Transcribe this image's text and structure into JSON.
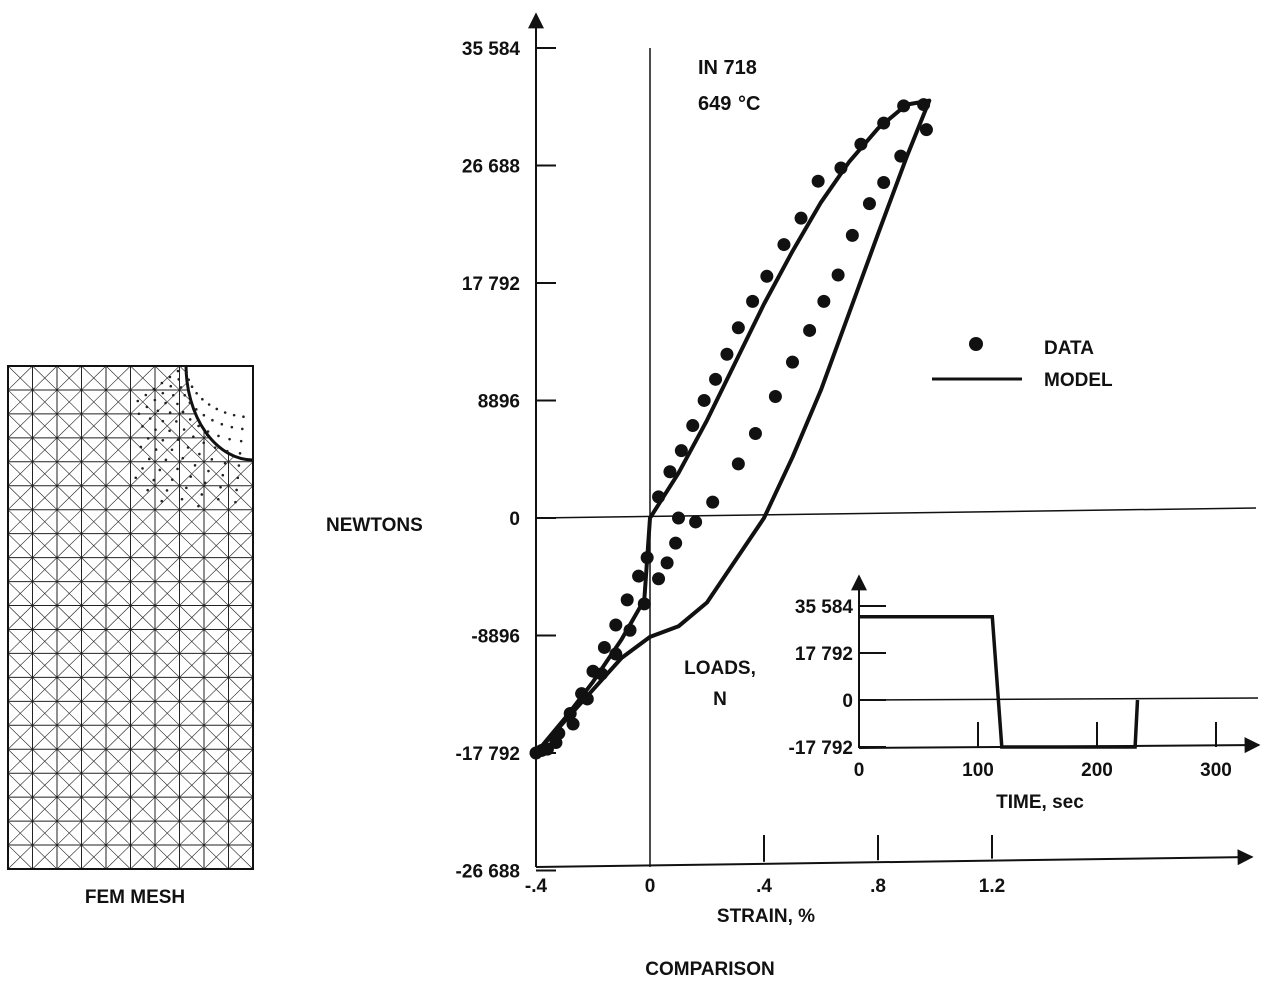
{
  "mesh": {
    "caption": "FEM MESH"
  },
  "main_chart": {
    "material": "IN 718",
    "temperature": "649",
    "temperature_unit": "°C",
    "ylabel": "NEWTONS",
    "xlabel": "STRAIN, %",
    "caption": "COMPARISON",
    "legend": {
      "data_label": "DATA",
      "model_label": "MODEL"
    }
  },
  "inset_chart": {
    "ylabel_line1": "LOADS,",
    "ylabel_line2": "N",
    "xlabel": "TIME, sec"
  },
  "chart_data": [
    {
      "type": "scatter",
      "title": "IN 718 649 °C",
      "xlabel": "STRAIN, %",
      "ylabel": "NEWTONS",
      "xlim": [
        -0.4,
        1.45
      ],
      "ylim": [
        -26688,
        35584
      ],
      "x_ticks": [
        -0.4,
        0,
        0.4,
        0.8,
        1.2
      ],
      "x_tick_labels": [
        "-.4",
        "0",
        ".4",
        ".8",
        "1.2"
      ],
      "y_ticks": [
        -26688,
        -17792,
        -8896,
        0,
        8896,
        17792,
        26688,
        35584
      ],
      "y_tick_labels": [
        "-26 688",
        "-17 792",
        "-8896",
        "0",
        "8896",
        "17 792",
        "26 688",
        "35 584"
      ],
      "grid": false,
      "legend_position": "right",
      "series": [
        {
          "name": "DATA",
          "style": "markers",
          "points": [
            [
              -0.4,
              -17792
            ],
            [
              -0.36,
              -17500
            ],
            [
              -0.32,
              -16300
            ],
            [
              -0.28,
              -14800
            ],
            [
              -0.24,
              -13300
            ],
            [
              -0.2,
              -11600
            ],
            [
              -0.16,
              -9800
            ],
            [
              -0.12,
              -8100
            ],
            [
              -0.08,
              -6200
            ],
            [
              -0.04,
              -4400
            ],
            [
              -0.01,
              -3000
            ],
            [
              0.03,
              1600
            ],
            [
              0.07,
              3500
            ],
            [
              0.11,
              5100
            ],
            [
              0.15,
              7000
            ],
            [
              0.19,
              8900
            ],
            [
              0.23,
              10500
            ],
            [
              0.27,
              12400
            ],
            [
              0.31,
              14400
            ],
            [
              0.36,
              16400
            ],
            [
              0.41,
              18300
            ],
            [
              0.47,
              20700
            ],
            [
              0.53,
              22700
            ],
            [
              0.59,
              25500
            ],
            [
              0.67,
              26500
            ],
            [
              0.74,
              28300
            ],
            [
              0.82,
              29900
            ],
            [
              0.89,
              31200
            ],
            [
              0.96,
              31300
            ],
            [
              0.97,
              29400
            ],
            [
              0.88,
              27400
            ],
            [
              0.82,
              25400
            ],
            [
              0.77,
              23800
            ],
            [
              0.71,
              21400
            ],
            [
              0.66,
              18400
            ],
            [
              0.61,
              16400
            ],
            [
              0.56,
              14200
            ],
            [
              0.5,
              11800
            ],
            [
              0.44,
              9200
            ],
            [
              0.37,
              6400
            ],
            [
              0.31,
              4100
            ],
            [
              0.22,
              1200
            ],
            [
              0.16,
              -300
            ],
            [
              0.1,
              0
            ],
            [
              0.09,
              -1900
            ],
            [
              0.06,
              -3400
            ],
            [
              0.03,
              -4600
            ],
            [
              -0.02,
              -6500
            ],
            [
              -0.07,
              -8500
            ],
            [
              -0.12,
              -10300
            ],
            [
              -0.17,
              -11800
            ],
            [
              -0.22,
              -13700
            ],
            [
              -0.27,
              -15600
            ],
            [
              -0.33,
              -17000
            ],
            [
              -0.38,
              -17600
            ]
          ]
        },
        {
          "name": "MODEL",
          "style": "line",
          "upper": [
            [
              -0.4,
              -17792
            ],
            [
              -0.3,
              -15200
            ],
            [
              -0.2,
              -12400
            ],
            [
              -0.1,
              -9200
            ],
            [
              -0.02,
              -6200
            ],
            [
              0.0,
              0
            ],
            [
              0.1,
              3400
            ],
            [
              0.2,
              7400
            ],
            [
              0.3,
              11800
            ],
            [
              0.4,
              16200
            ],
            [
              0.5,
              20200
            ],
            [
              0.6,
              23900
            ],
            [
              0.7,
              27000
            ],
            [
              0.8,
              29500
            ],
            [
              0.9,
              31300
            ],
            [
              0.98,
              31600
            ]
          ],
          "lower": [
            [
              0.98,
              31600
            ],
            [
              0.9,
              27300
            ],
            [
              0.8,
              21500
            ],
            [
              0.7,
              15600
            ],
            [
              0.6,
              9700
            ],
            [
              0.5,
              4600
            ],
            [
              0.4,
              0
            ],
            [
              0.3,
              -3200
            ],
            [
              0.2,
              -6400
            ],
            [
              0.1,
              -8200
            ],
            [
              0.0,
              -9000
            ],
            [
              -0.1,
              -10600
            ],
            [
              -0.2,
              -13000
            ],
            [
              -0.3,
              -15400
            ],
            [
              -0.4,
              -17792
            ]
          ]
        }
      ]
    },
    {
      "type": "line",
      "title": "",
      "xlabel": "TIME, sec",
      "ylabel": "LOADS, N",
      "xlim": [
        0,
        325
      ],
      "ylim": [
        -17792,
        44000
      ],
      "x_ticks": [
        0,
        100,
        200,
        300
      ],
      "x_tick_labels": [
        "0",
        "100",
        "200",
        "300"
      ],
      "y_ticks": [
        -17792,
        0,
        17792,
        35584
      ],
      "y_tick_labels": [
        "-17 792",
        "0",
        "17 792",
        "35 584"
      ],
      "grid": false,
      "series": [
        {
          "name": "",
          "x": [
            0,
            112,
            120,
            232,
            234
          ],
          "y": [
            31500,
            31500,
            -17792,
            -17792,
            0
          ]
        }
      ]
    }
  ]
}
